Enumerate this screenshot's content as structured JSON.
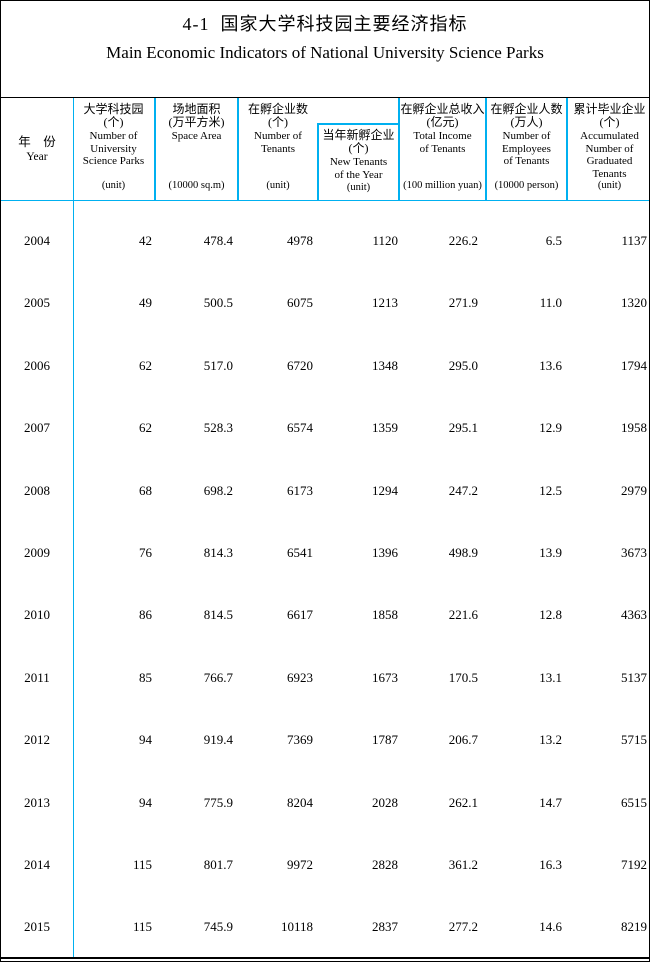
{
  "page": {
    "title_zh": "4-1  国家大学科技园主要经济指标",
    "title_en": "Main Economic Indicators of National University Science Parks"
  },
  "colors": {
    "accent_border": "#00B0F0",
    "dark_border": "#000000"
  },
  "table": {
    "header": {
      "year": {
        "zh": "年　份",
        "en": "Year"
      },
      "parks": {
        "zh": "大学科技园\n(个)",
        "en": "Number of\nUniversity\nScience Parks",
        "unit": "(unit)"
      },
      "area": {
        "zh": "场地面积\n(万平方米)",
        "en": "Space Area",
        "unit": "(10000 sq.m)"
      },
      "tenants": {
        "zh": "在孵企业数\n(个)",
        "en": "Number of\nTenants",
        "unit": "(unit)"
      },
      "new_tenants": {
        "zh": "当年新孵企业\n(个)",
        "en": "New Tenants\nof the Year",
        "unit": "(unit)"
      },
      "income": {
        "zh": "在孵企业总收入\n(亿元)",
        "en": "Total Income\nof Tenants",
        "unit": "(100 million yuan)"
      },
      "employees": {
        "zh": "在孵企业人数\n(万人)",
        "en": "Number of\nEmployees\nof Tenants",
        "unit": "(10000 person)"
      },
      "graduated": {
        "zh": "累计毕业企业\n(个)",
        "en": "Accumulated\nNumber of\nGraduated\nTenants",
        "unit": "(unit)"
      }
    },
    "rows": [
      {
        "year": "2004",
        "values": [
          "42",
          "478.4",
          "4978",
          "1120",
          "226.2",
          "6.5",
          "1137"
        ]
      },
      {
        "year": "2005",
        "values": [
          "49",
          "500.5",
          "6075",
          "1213",
          "271.9",
          "11.0",
          "1320"
        ]
      },
      {
        "year": "2006",
        "values": [
          "62",
          "517.0",
          "6720",
          "1348",
          "295.0",
          "13.6",
          "1794"
        ]
      },
      {
        "year": "2007",
        "values": [
          "62",
          "528.3",
          "6574",
          "1359",
          "295.1",
          "12.9",
          "1958"
        ]
      },
      {
        "year": "2008",
        "values": [
          "68",
          "698.2",
          "6173",
          "1294",
          "247.2",
          "12.5",
          "2979"
        ]
      },
      {
        "year": "2009",
        "values": [
          "76",
          "814.3",
          "6541",
          "1396",
          "498.9",
          "13.9",
          "3673"
        ]
      },
      {
        "year": "2010",
        "values": [
          "86",
          "814.5",
          "6617",
          "1858",
          "221.6",
          "12.8",
          "4363"
        ]
      },
      {
        "year": "2011",
        "values": [
          "85",
          "766.7",
          "6923",
          "1673",
          "170.5",
          "13.1",
          "5137"
        ]
      },
      {
        "year": "2012",
        "values": [
          "94",
          "919.4",
          "7369",
          "1787",
          "206.7",
          "13.2",
          "5715"
        ]
      },
      {
        "year": "2013",
        "values": [
          "94",
          "775.9",
          "8204",
          "2028",
          "262.1",
          "14.7",
          "6515"
        ]
      },
      {
        "year": "2014",
        "values": [
          "115",
          "801.7",
          "9972",
          "2828",
          "361.2",
          "16.3",
          "7192"
        ]
      },
      {
        "year": "2015",
        "values": [
          "115",
          "745.9",
          "10118",
          "2837",
          "277.2",
          "14.6",
          "8219"
        ]
      }
    ]
  }
}
